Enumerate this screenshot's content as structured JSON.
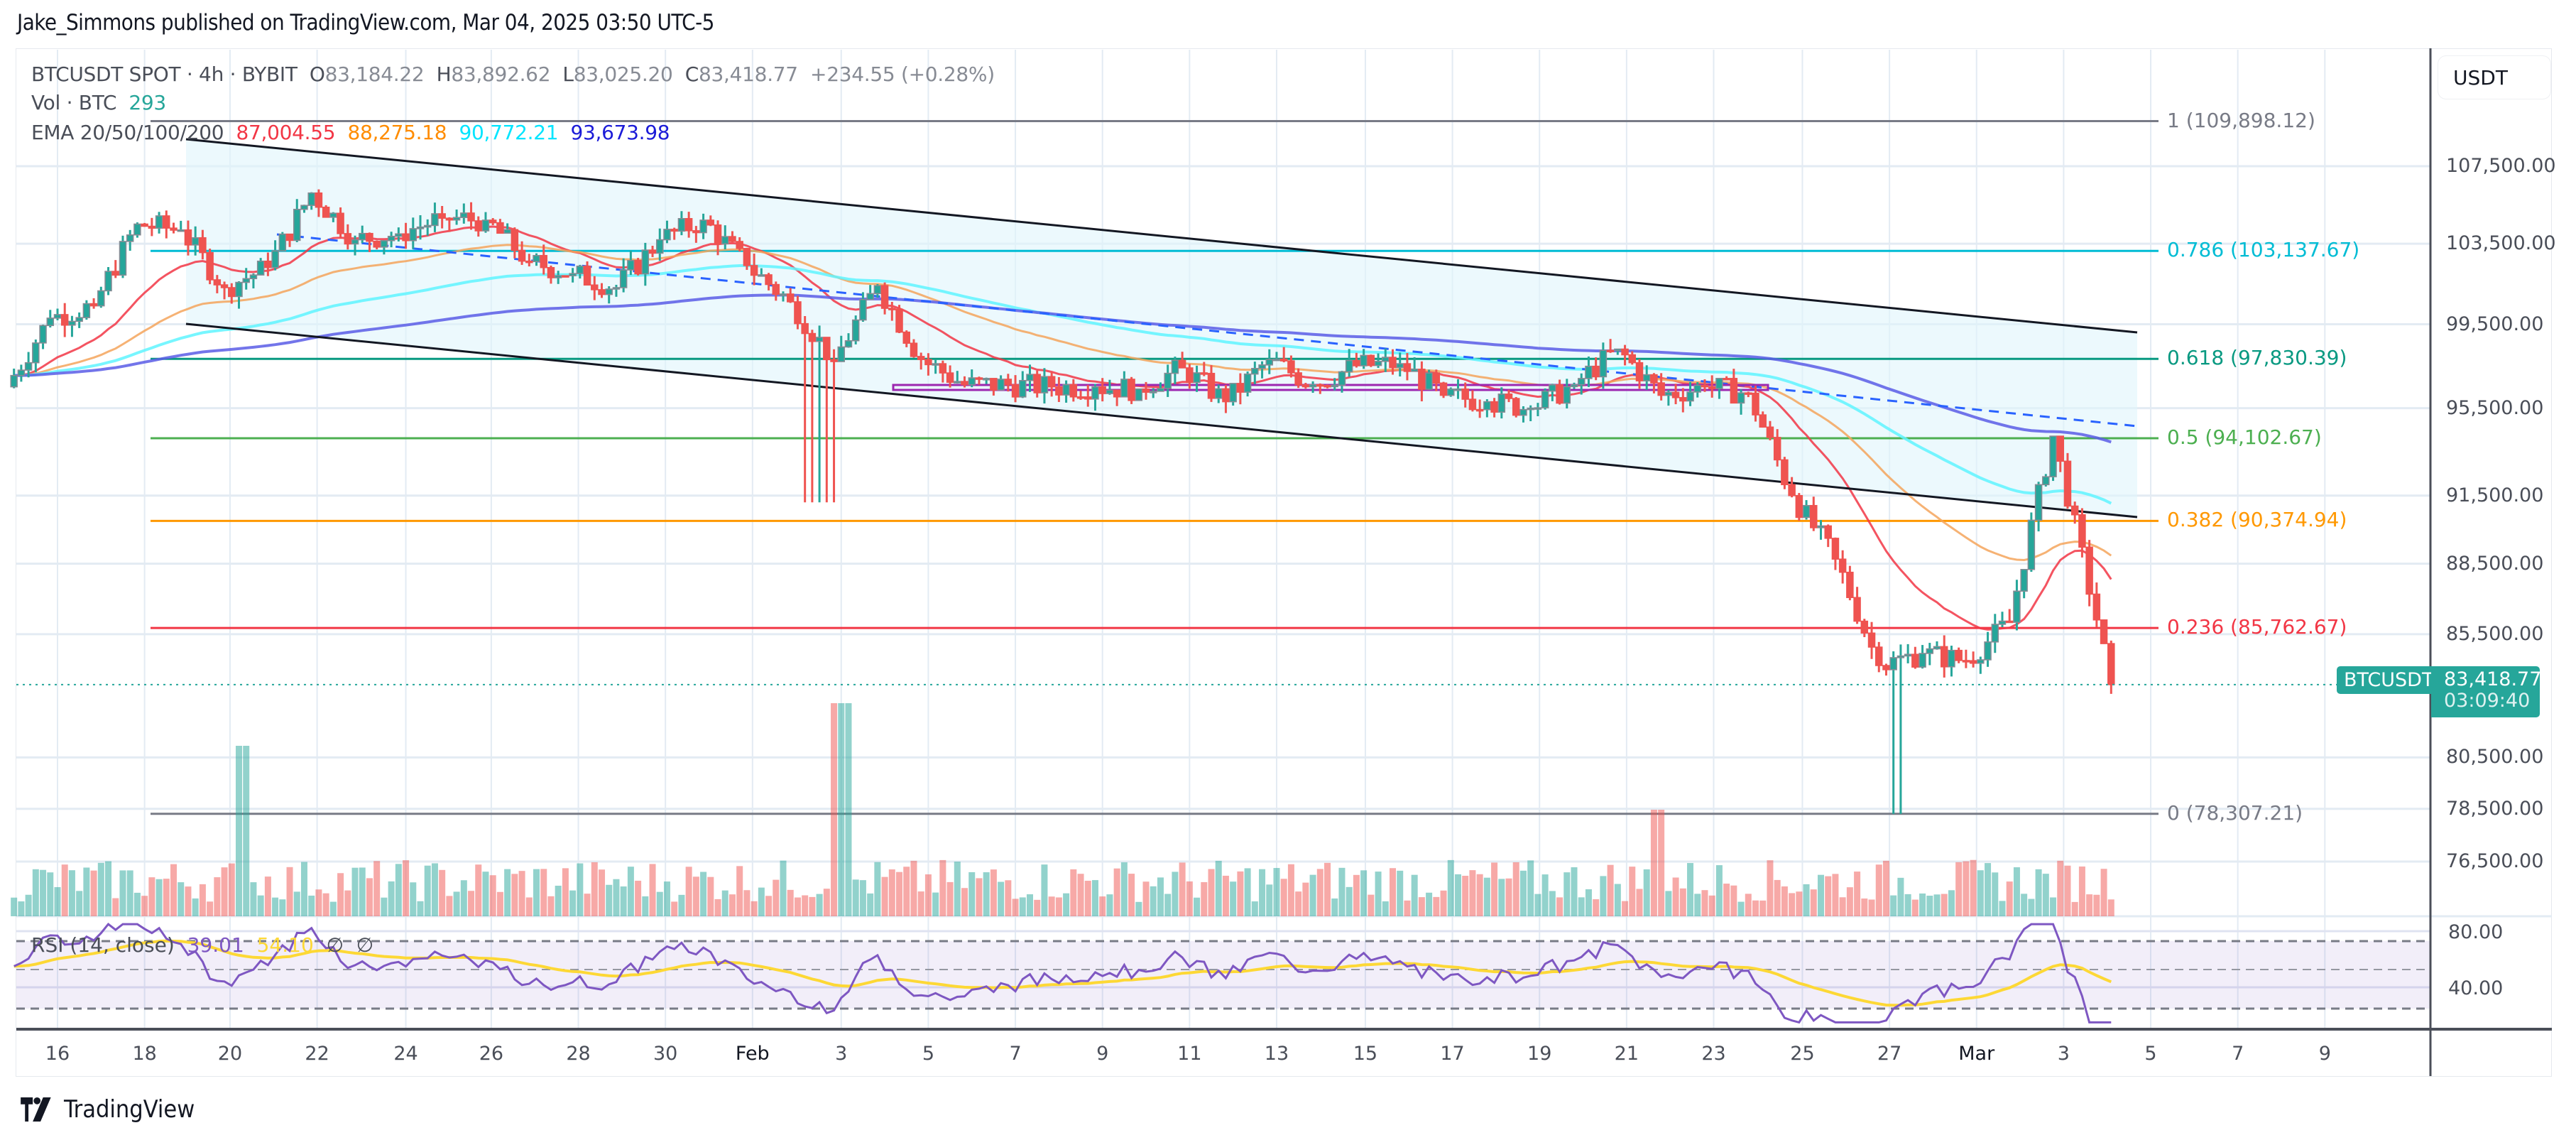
{
  "header": {
    "published": "Jake_Simmons published on TradingView.com, Mar 04, 2025 03:50 UTC-5"
  },
  "legend": {
    "symbol": "BTCUSDT SPOT · 4h · BYBIT",
    "open_label": "O",
    "open": "83,184.22",
    "high_label": "H",
    "high": "83,892.62",
    "low_label": "L",
    "low": "83,025.20",
    "close_label": "C",
    "close": "83,418.77",
    "change": "+234.55 (+0.28%)",
    "vol_label": "Vol · BTC",
    "vol_value": "293",
    "ema_label": "EMA 20/50/100/200",
    "ema_values": [
      {
        "value": "87,004.55",
        "color": "#f23645"
      },
      {
        "value": "88,275.18",
        "color": "#ff9800"
      },
      {
        "value": "90,772.21",
        "color": "#00e5ff"
      },
      {
        "value": "93,673.98",
        "color": "#1b1bd8"
      }
    ]
  },
  "rsi": {
    "label": "RSI (14, close)",
    "value": "39.01",
    "ma_value": "54.10",
    "na1": "∅",
    "na2": "∅",
    "axis": [
      "80.00",
      "40.00"
    ]
  },
  "price_axis": {
    "currency": "USDT",
    "ticks": [
      "107,500.00",
      "103,500.00",
      "99,500.00",
      "95,500.00",
      "91,500.00",
      "88,500.00",
      "85,500.00",
      "80,500.00",
      "78,500.00",
      "76,500.00"
    ]
  },
  "last_price": {
    "symbol": "BTCUSDT",
    "price": "83,418.77",
    "countdown": "03:09:40",
    "color": "#26a69a"
  },
  "fib_levels": [
    {
      "label": "1 (109,898.12)",
      "level": 1,
      "price": 109898.12,
      "color": "#787b86"
    },
    {
      "label": "0.786 (103,137.67)",
      "level": 0.786,
      "price": 103137.67,
      "color": "#00bcd4"
    },
    {
      "label": "0.618 (97,830.39)",
      "level": 0.618,
      "price": 97830.39,
      "color": "#089981"
    },
    {
      "label": "0.5 (94,102.67)",
      "level": 0.5,
      "price": 94102.67,
      "color": "#4caf50"
    },
    {
      "label": "0.382 (90,374.94)",
      "level": 0.382,
      "price": 90374.94,
      "color": "#ff9800"
    },
    {
      "label": "0.236 (85,762.67)",
      "level": 0.236,
      "price": 85762.67,
      "color": "#f23645"
    },
    {
      "label": "0 (78,307.21)",
      "level": 0,
      "price": 78307.21,
      "color": "#787b86"
    }
  ],
  "time_axis": {
    "labels": [
      "16",
      "18",
      "20",
      "22",
      "24",
      "26",
      "28",
      "30",
      "Feb",
      "3",
      "5",
      "7",
      "9",
      "11",
      "13",
      "15",
      "17",
      "19",
      "21",
      "23",
      "25",
      "27",
      "Mar",
      "3",
      "5",
      "7",
      "9"
    ]
  },
  "footer": {
    "brand": "TradingView"
  },
  "chart_data": {
    "type": "candlestick",
    "title": "BTCUSDT SPOT · 4h · BYBIT",
    "xlabel": "",
    "ylabel": "USDT",
    "x_range": [
      "Jan 15, 2025",
      "Mar 10, 2025"
    ],
    "ylim": [
      75500,
      111000
    ],
    "y_scale": "log",
    "grid": true,
    "ohlc_last": {
      "open": 83184.22,
      "high": 83892.62,
      "low": 83025.2,
      "close": 83418.77,
      "change": 234.55,
      "change_pct": 0.28
    },
    "approx_daily_close": [
      {
        "date": "Jan 15",
        "close": 99800
      },
      {
        "date": "Jan 16",
        "close": 100400
      },
      {
        "date": "Jan 17",
        "close": 104500
      },
      {
        "date": "Jan 18",
        "close": 104200
      },
      {
        "date": "Jan 19",
        "close": 101300
      },
      {
        "date": "Jan 20",
        "close": 102300
      },
      {
        "date": "Jan 21",
        "close": 106100
      },
      {
        "date": "Jan 22",
        "close": 103700
      },
      {
        "date": "Jan 23",
        "close": 104000
      },
      {
        "date": "Jan 24",
        "close": 104800
      },
      {
        "date": "Jan 25",
        "close": 104700
      },
      {
        "date": "Jan 26",
        "close": 102600
      },
      {
        "date": "Jan 27",
        "close": 102000
      },
      {
        "date": "Jan 28",
        "close": 101300
      },
      {
        "date": "Jan 29",
        "close": 103700
      },
      {
        "date": "Jan 30",
        "close": 104700
      },
      {
        "date": "Jan 31",
        "close": 102400
      },
      {
        "date": "Feb 1",
        "close": 100600
      },
      {
        "date": "Feb 2",
        "close": 97700
      },
      {
        "date": "Feb 3",
        "close": 101400
      },
      {
        "date": "Feb 4",
        "close": 97800
      },
      {
        "date": "Feb 5",
        "close": 96600
      },
      {
        "date": "Feb 6",
        "close": 96600
      },
      {
        "date": "Feb 7",
        "close": 96500
      },
      {
        "date": "Feb 8",
        "close": 96500
      },
      {
        "date": "Feb 9",
        "close": 96400
      },
      {
        "date": "Feb 10",
        "close": 97400
      },
      {
        "date": "Feb 11",
        "close": 95800
      },
      {
        "date": "Feb 12",
        "close": 97800
      },
      {
        "date": "Feb 13",
        "close": 96600
      },
      {
        "date": "Feb 14",
        "close": 97500
      },
      {
        "date": "Feb 15",
        "close": 97600
      },
      {
        "date": "Feb 16",
        "close": 96100
      },
      {
        "date": "Feb 17",
        "close": 95800
      },
      {
        "date": "Feb 18",
        "close": 95500
      },
      {
        "date": "Feb 19",
        "close": 96600
      },
      {
        "date": "Feb 20",
        "close": 98300
      },
      {
        "date": "Feb 21",
        "close": 96100
      },
      {
        "date": "Feb 22",
        "close": 96500
      },
      {
        "date": "Feb 23",
        "close": 96200
      },
      {
        "date": "Feb 24",
        "close": 91500
      },
      {
        "date": "Feb 25",
        "close": 88700
      },
      {
        "date": "Feb 26",
        "close": 84200
      },
      {
        "date": "Feb 27",
        "close": 84700
      },
      {
        "date": "Feb 28",
        "close": 84400
      },
      {
        "date": "Mar 1",
        "close": 86000
      },
      {
        "date": "Mar 2",
        "close": 94200
      },
      {
        "date": "Mar 3",
        "close": 86100
      },
      {
        "date": "Mar 4",
        "close": 83418.77
      }
    ],
    "indicators": {
      "EMA20": 87004.55,
      "EMA50": 88275.18,
      "EMA100": 90772.21,
      "EMA200": 93673.98,
      "RSI14": 39.01,
      "RSI_MA": 54.1
    },
    "annotations": [
      "Descending parallel channel (black lines, light blue fill)",
      "Horizontal support ~96,400 (purple)",
      "Dashed blue trendline",
      "Fibonacci retracement 0 (78,307.21) to 1 (109,898.12)"
    ],
    "volume_last": 293,
    "volume_peaks": [
      {
        "date": "Jan 20",
        "approx_rel": 0.95
      },
      {
        "date": "Feb 3",
        "approx_rel": 1.0
      },
      {
        "date": "Feb 21",
        "approx_rel": 0.5
      }
    ]
  }
}
